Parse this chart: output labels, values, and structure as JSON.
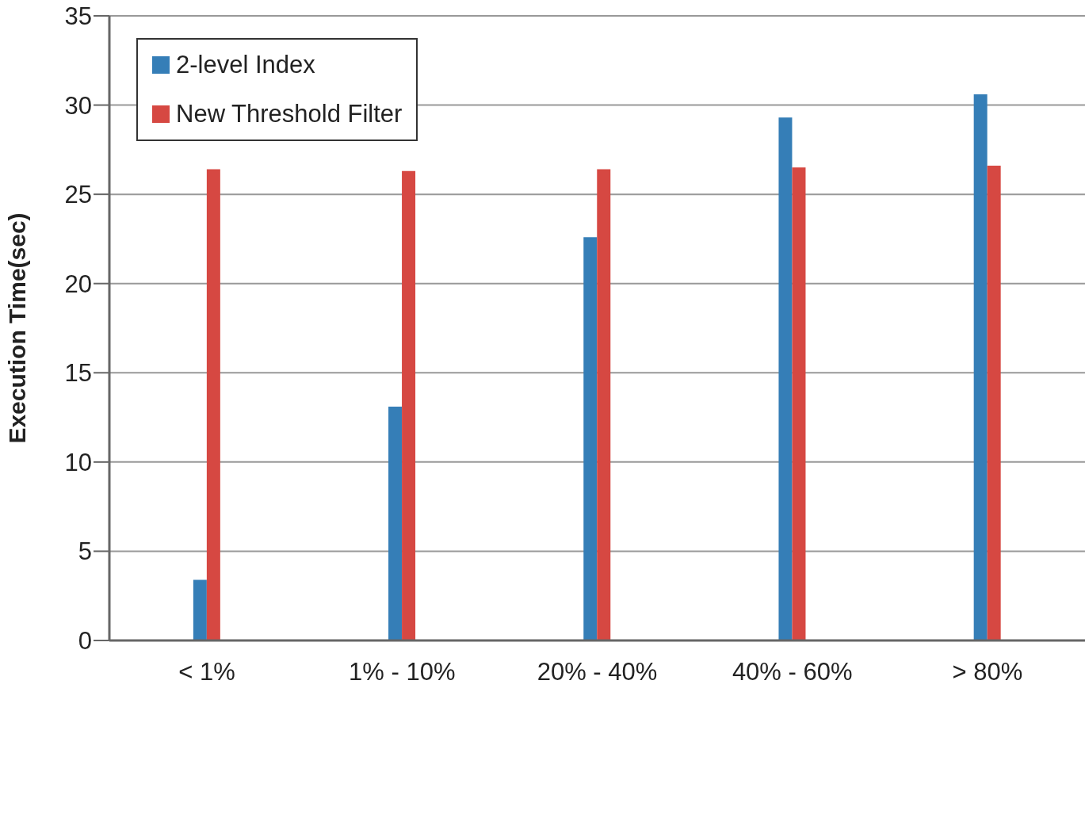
{
  "chart_data": {
    "type": "bar",
    "ylabel": "Execution Time(sec)",
    "categories": [
      "< 1%",
      "1% - 10%",
      "20% - 40%",
      "40% - 60%",
      "> 80%"
    ],
    "series": [
      {
        "name": "2-level Index",
        "color": "#357eb7",
        "values": [
          3.4,
          13.1,
          22.6,
          29.3,
          30.6
        ]
      },
      {
        "name": "New Threshold Filter",
        "color": "#d64842",
        "values": [
          26.4,
          26.3,
          26.4,
          26.5,
          26.6
        ]
      }
    ],
    "ylim": [
      0,
      35
    ],
    "yticks": [
      0,
      5,
      10,
      15,
      20,
      25,
      30,
      35
    ],
    "grid": "y",
    "legend": "top left"
  }
}
